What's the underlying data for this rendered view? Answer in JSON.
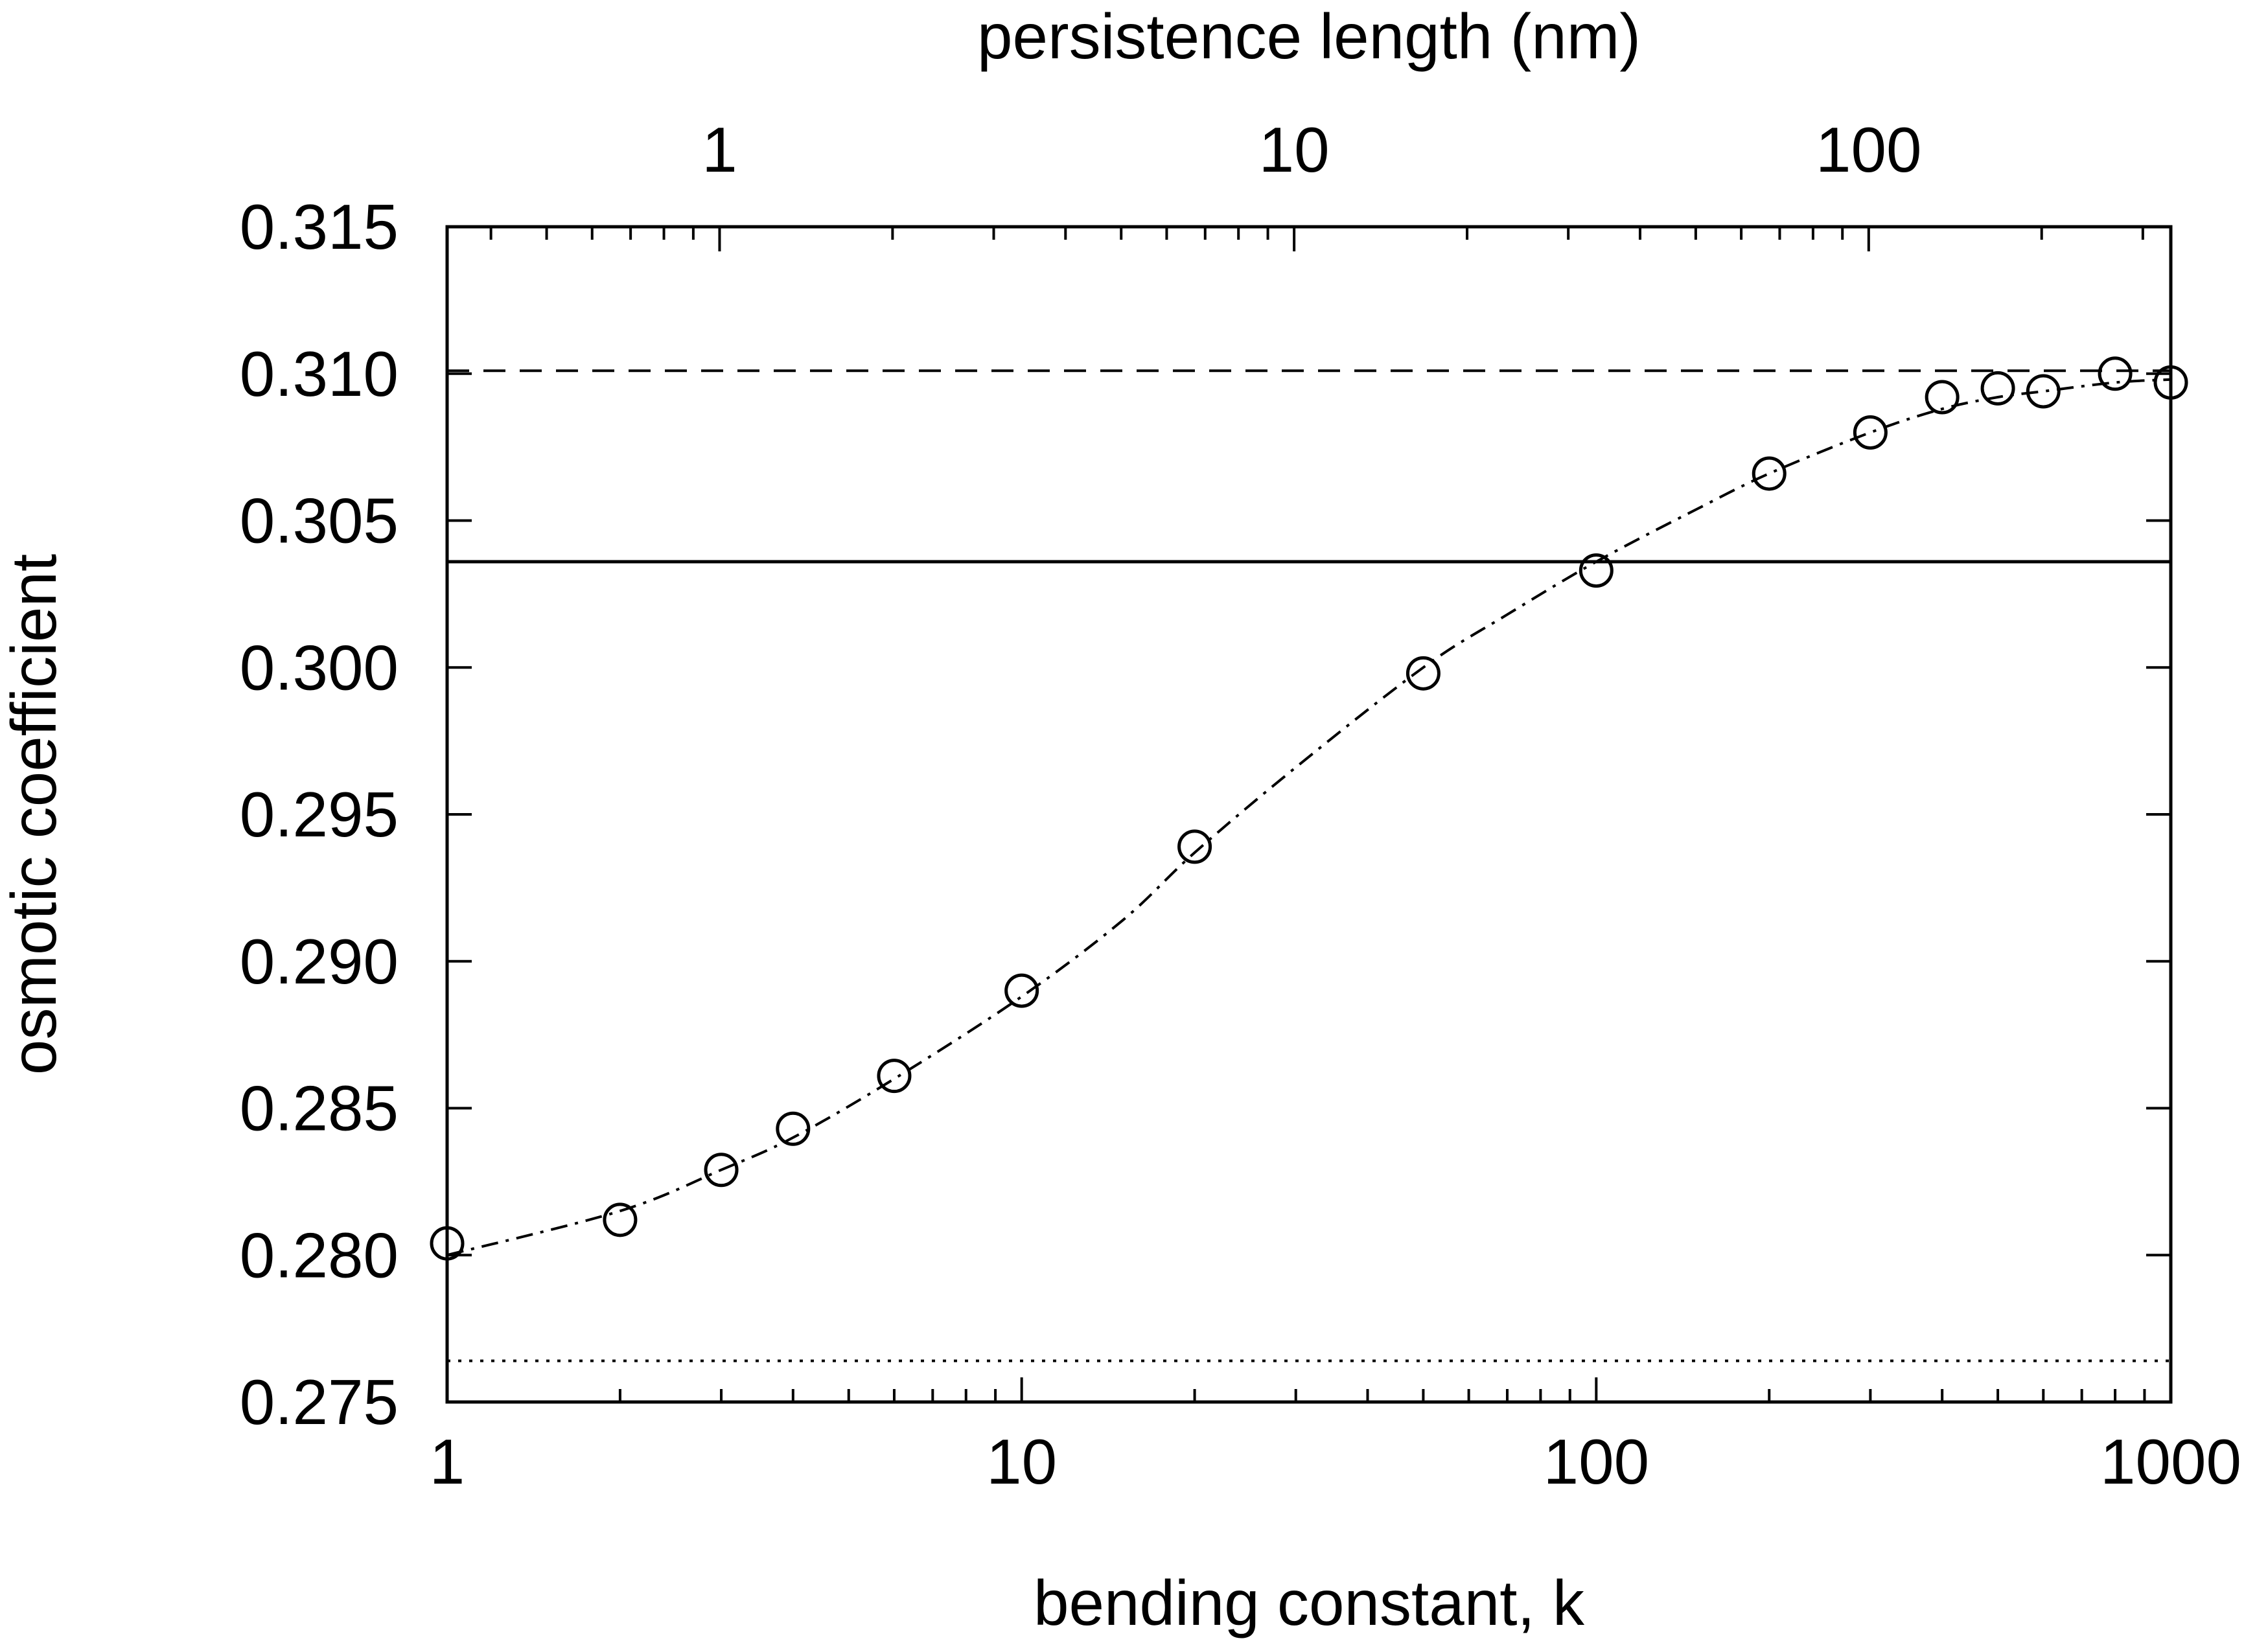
{
  "chart_data": {
    "type": "scatter",
    "title": "",
    "xlabel": "bending constant, k",
    "ylabel": "osmotic coefficient",
    "x2label": "persistence length (nm)",
    "xscale": "log",
    "xlim": [
      1,
      1000
    ],
    "ylim": [
      0.275,
      0.315
    ],
    "grid": false,
    "x_ticks": [
      "1",
      "10",
      "100",
      "1000"
    ],
    "y_ticks": [
      "0.275",
      "0.280",
      "0.285",
      "0.290",
      "0.295",
      "0.300",
      "0.305",
      "0.310",
      "0.315"
    ],
    "x2_ticks": [
      "1",
      "10",
      "100"
    ],
    "x2_tick_positions_k": [
      2.98,
      29.8,
      298
    ],
    "colors": {
      "ink": "#000000",
      "background": "#ffffff"
    },
    "series": [
      {
        "marker": "open-circle",
        "x": [
          1,
          2,
          3,
          4,
          6,
          10,
          20,
          50,
          100,
          200,
          300,
          400,
          500,
          600,
          800,
          1000
        ],
        "y": [
          0.2804,
          0.2812,
          0.2829,
          0.2843,
          0.2861,
          0.289,
          0.2939,
          0.2998,
          0.3033,
          0.3066,
          0.308,
          0.3092,
          0.3095,
          0.3094,
          0.31,
          0.3097
        ]
      },
      {
        "line": "dash-dot",
        "x": [
          1,
          2,
          3,
          4,
          6,
          10,
          15,
          20,
          30,
          50,
          70,
          100,
          150,
          200,
          300,
          400,
          500,
          600,
          800,
          1000
        ],
        "y": [
          0.28,
          0.2815,
          0.2829,
          0.284,
          0.286,
          0.2888,
          0.2914,
          0.2937,
          0.2966,
          0.3,
          0.3018,
          0.3036,
          0.3054,
          0.3066,
          0.308,
          0.3088,
          0.3092,
          0.3094,
          0.3097,
          0.3098
        ]
      }
    ],
    "reference_lines": [
      {
        "style": "dashed",
        "y": 0.3101
      },
      {
        "style": "solid",
        "y": 0.3036
      },
      {
        "style": "dotted",
        "y": 0.2764
      }
    ]
  }
}
